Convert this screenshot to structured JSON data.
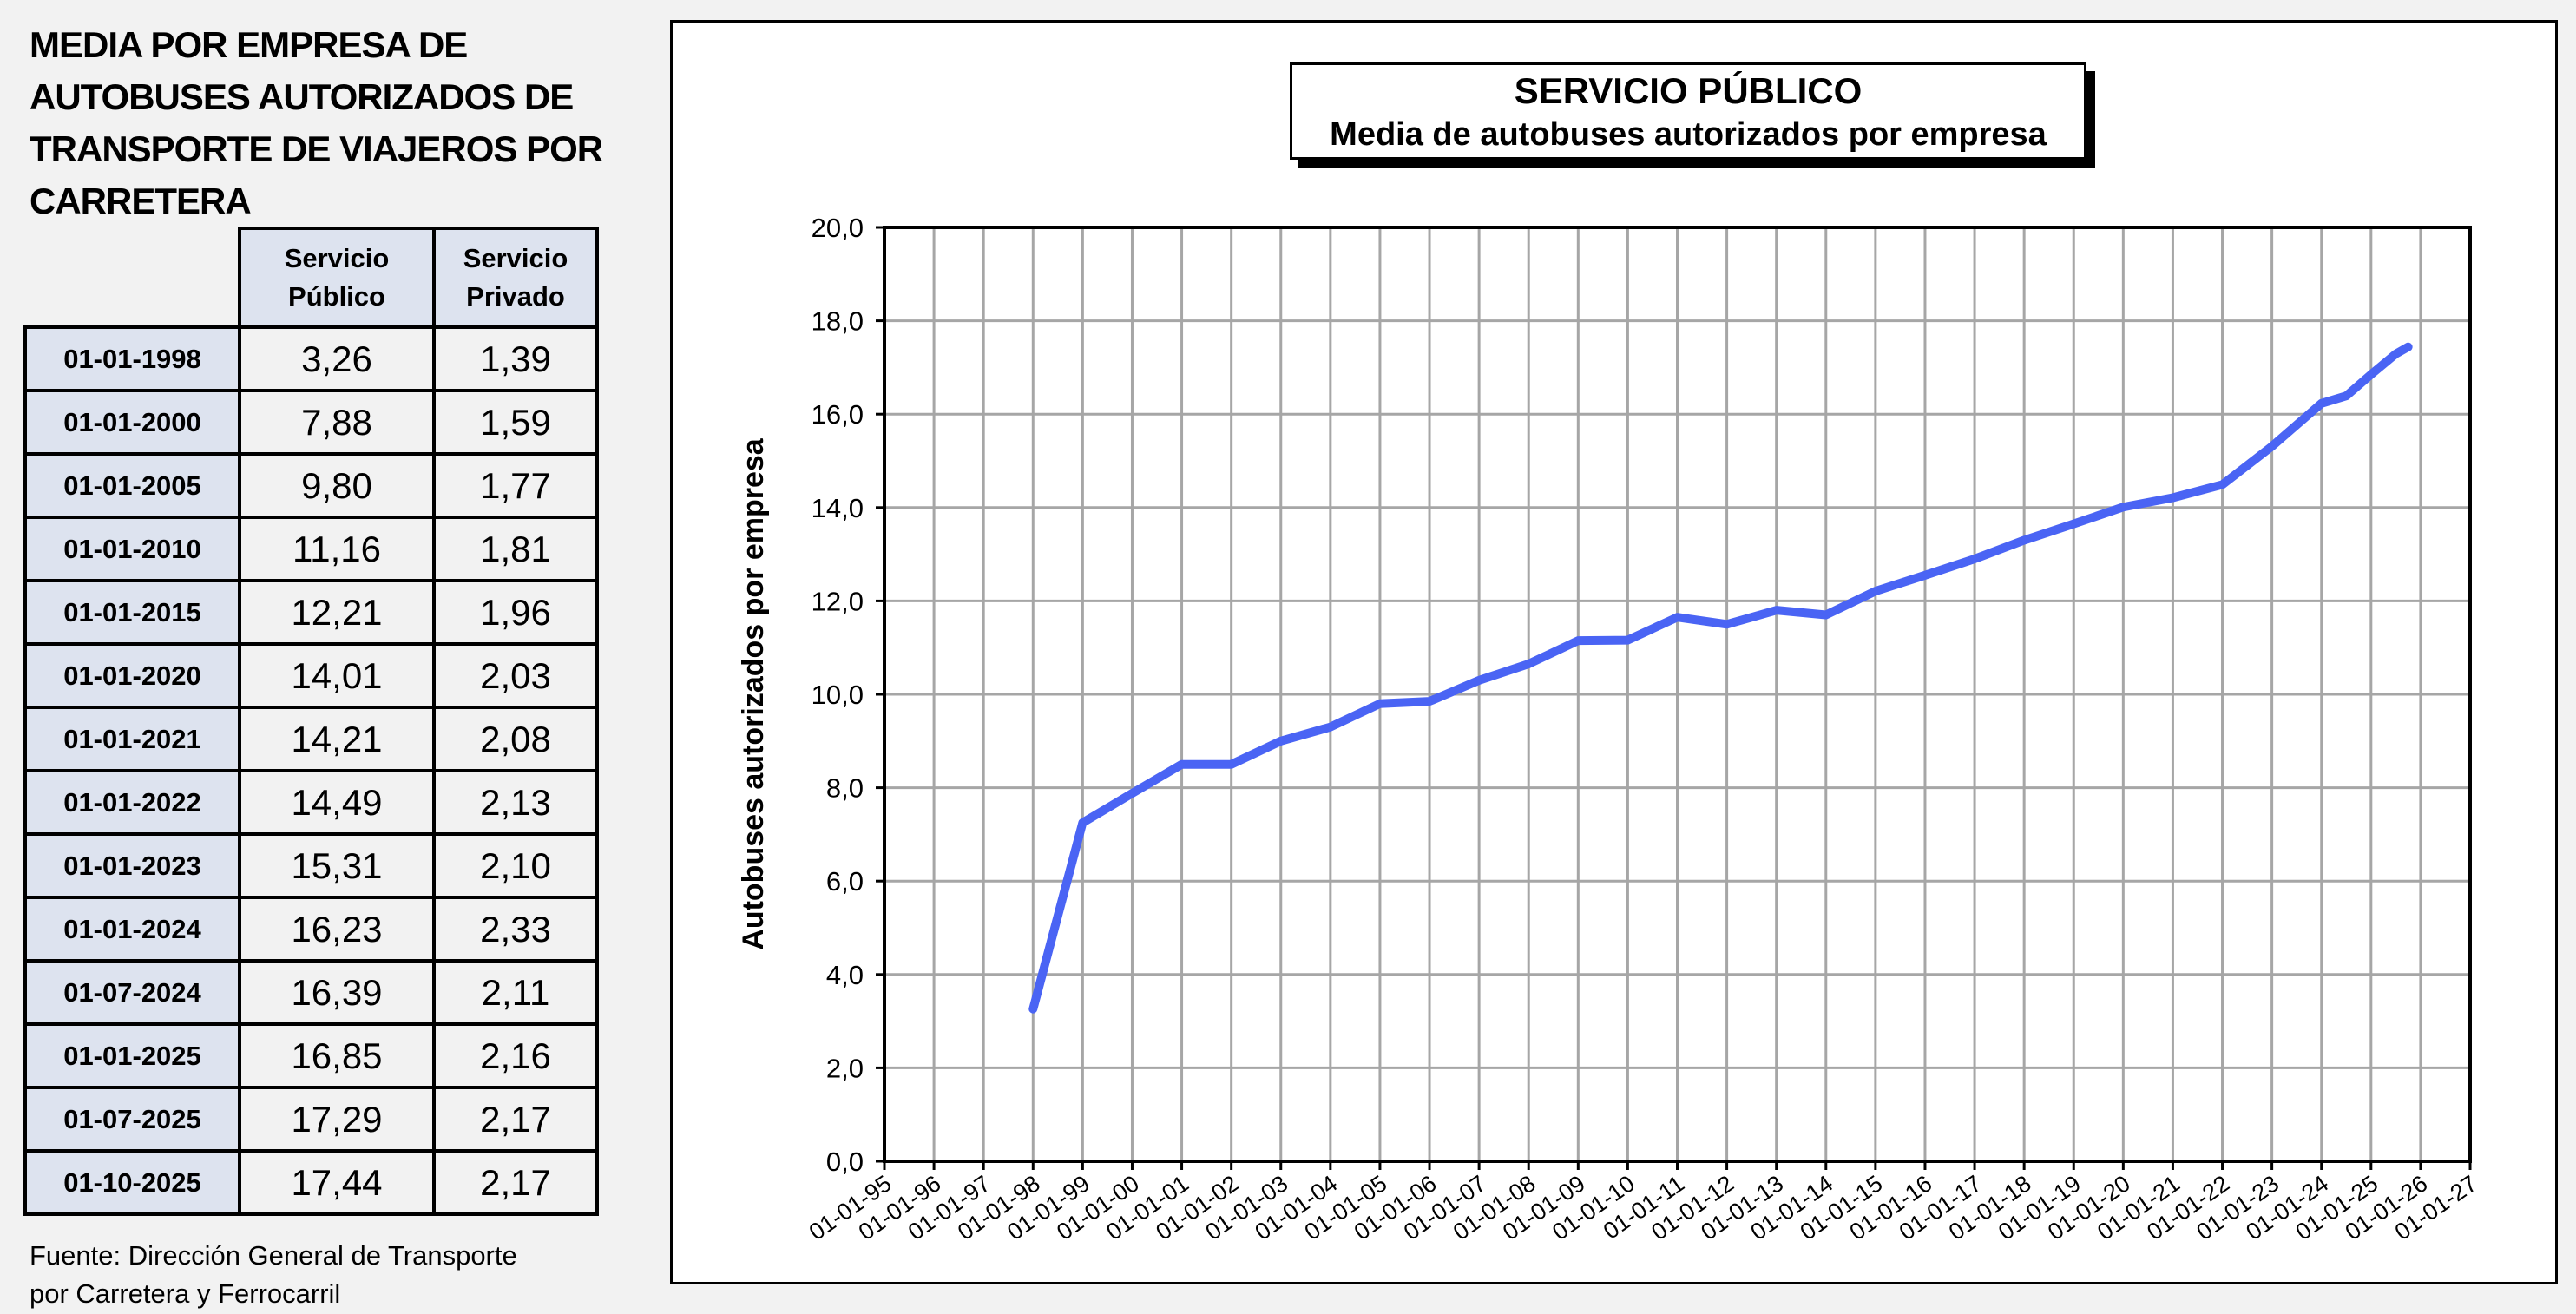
{
  "left_title": "MEDIA POR EMPRESA DE AUTOBUSES AUTORIZADOS DE TRANSPORTE DE VIAJEROS POR CARRETERA",
  "table": {
    "headers": [
      "Servicio Público",
      "Servicio Privado"
    ],
    "rows": [
      {
        "date": "01-01-1998",
        "publico": "3,26",
        "privado": "1,39"
      },
      {
        "date": "01-01-2000",
        "publico": "7,88",
        "privado": "1,59"
      },
      {
        "date": "01-01-2005",
        "publico": "9,80",
        "privado": "1,77"
      },
      {
        "date": "01-01-2010",
        "publico": "11,16",
        "privado": "1,81"
      },
      {
        "date": "01-01-2015",
        "publico": "12,21",
        "privado": "1,96"
      },
      {
        "date": "01-01-2020",
        "publico": "14,01",
        "privado": "2,03"
      },
      {
        "date": "01-01-2021",
        "publico": "14,21",
        "privado": "2,08"
      },
      {
        "date": "01-01-2022",
        "publico": "14,49",
        "privado": "2,13"
      },
      {
        "date": "01-01-2023",
        "publico": "15,31",
        "privado": "2,10"
      },
      {
        "date": "01-01-2024",
        "publico": "16,23",
        "privado": "2,33"
      },
      {
        "date": "01-07-2024",
        "publico": "16,39",
        "privado": "2,11"
      },
      {
        "date": "01-01-2025",
        "publico": "16,85",
        "privado": "2,16"
      },
      {
        "date": "01-07-2025",
        "publico": "17,29",
        "privado": "2,17"
      },
      {
        "date": "01-10-2025",
        "publico": "17,44",
        "privado": "2,17"
      }
    ]
  },
  "footer": {
    "line1": "Fuente: Dirección General de Transporte",
    "line2": "por Carretera y Ferrocarril"
  },
  "chart_data": {
    "type": "line",
    "title": "SERVICIO PÚBLICO",
    "subtitle": "Media de autobuses autorizados por empresa",
    "xlabel": "",
    "ylabel": "Autobuses  autorizados por empresa",
    "ylim": [
      0,
      20
    ],
    "yticks": [
      "0,0",
      "2,0",
      "4,0",
      "6,0",
      "8,0",
      "10,0",
      "12,0",
      "14,0",
      "16,0",
      "18,0",
      "20,0"
    ],
    "xlim": [
      1995,
      2027
    ],
    "xticks": [
      "01-01-95",
      "01-01-96",
      "01-01-97",
      "01-01-98",
      "01-01-99",
      "01-01-00",
      "01-01-01",
      "01-01-02",
      "01-01-03",
      "01-01-04",
      "01-01-05",
      "01-01-06",
      "01-01-07",
      "01-01-08",
      "01-01-09",
      "01-01-10",
      "01-01-11",
      "01-01-12",
      "01-01-13",
      "01-01-14",
      "01-01-15",
      "01-01-16",
      "01-01-17",
      "01-01-18",
      "01-01-19",
      "01-01-20",
      "01-01-21",
      "01-01-22",
      "01-01-23",
      "01-01-24",
      "01-01-25",
      "01-01-26",
      "01-01-27"
    ],
    "grid": true,
    "series": [
      {
        "name": "Servicio Público",
        "color": "#4a64f4",
        "x": [
          1998,
          1999,
          2000,
          2001,
          2002,
          2003,
          2004,
          2005,
          2006,
          2007,
          2008,
          2009,
          2010,
          2011,
          2012,
          2013,
          2014,
          2015,
          2016,
          2017,
          2018,
          2019,
          2020,
          2021,
          2022,
          2023,
          2024,
          2024.5,
          2025,
          2025.5,
          2025.75
        ],
        "y": [
          3.26,
          7.25,
          7.88,
          8.5,
          8.5,
          9.0,
          9.3,
          9.8,
          9.85,
          10.3,
          10.65,
          11.15,
          11.16,
          11.65,
          11.5,
          11.8,
          11.7,
          12.21,
          12.55,
          12.9,
          13.3,
          13.65,
          14.01,
          14.21,
          14.49,
          15.31,
          16.23,
          16.39,
          16.85,
          17.29,
          17.44
        ]
      }
    ]
  }
}
